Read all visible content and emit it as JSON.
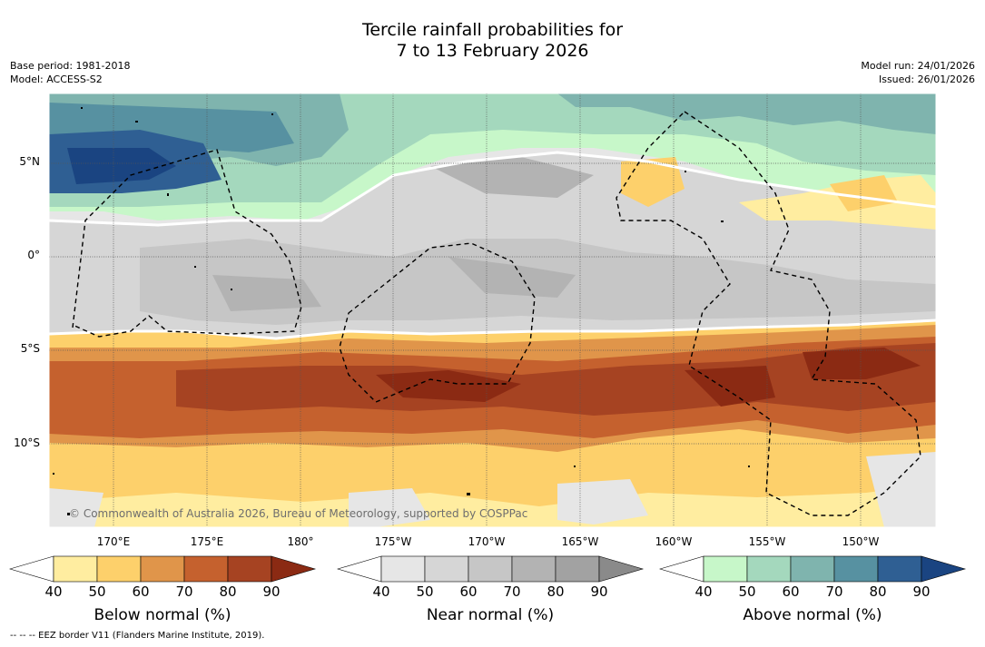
{
  "title": {
    "line1": "Tercile rainfall probabilities for",
    "line2": "7 to 13 February 2026"
  },
  "meta_left": {
    "base_period": "Base period: 1981-2018",
    "model": "Model: ACCESS-S2"
  },
  "meta_right": {
    "model_run": "Model run: 24/01/2026",
    "issued": "Issued: 26/01/2026"
  },
  "map": {
    "latitude_labels": [
      "5°N",
      "0°",
      "5°S",
      "10°S"
    ],
    "longitude_labels": [
      "170°E",
      "175°E",
      "180°",
      "175°W",
      "170°W",
      "165°W",
      "160°W",
      "155°W",
      "150°W"
    ],
    "copyright": "© Commonwealth of Australia 2026, Bureau of Meteorology, supported by COSPPac"
  },
  "colorbars": [
    {
      "title": "Below normal (%)",
      "ticks": [
        "40",
        "50",
        "60",
        "70",
        "80",
        "90"
      ],
      "colors": [
        "#ffffff",
        "#ffeda0",
        "#fdd06b",
        "#e0954a",
        "#c5612e",
        "#a64322",
        "#8b2a13"
      ]
    },
    {
      "title": "Near normal (%)",
      "ticks": [
        "40",
        "50",
        "60",
        "70",
        "80",
        "90"
      ],
      "colors": [
        "#ffffff",
        "#e6e6e6",
        "#d6d6d6",
        "#c6c6c6",
        "#b3b3b3",
        "#a2a2a2",
        "#8a8a8a"
      ]
    },
    {
      "title": "Above normal (%)",
      "ticks": [
        "40",
        "50",
        "60",
        "70",
        "80",
        "90"
      ],
      "colors": [
        "#ffffff",
        "#c7f7c9",
        "#a4d8bd",
        "#7fb4ae",
        "#5791a1",
        "#2f5f93",
        "#1a4481"
      ]
    }
  ],
  "footer": "--  --  -- EEZ border V11 (Flanders Marine Institute, 2019)."
}
